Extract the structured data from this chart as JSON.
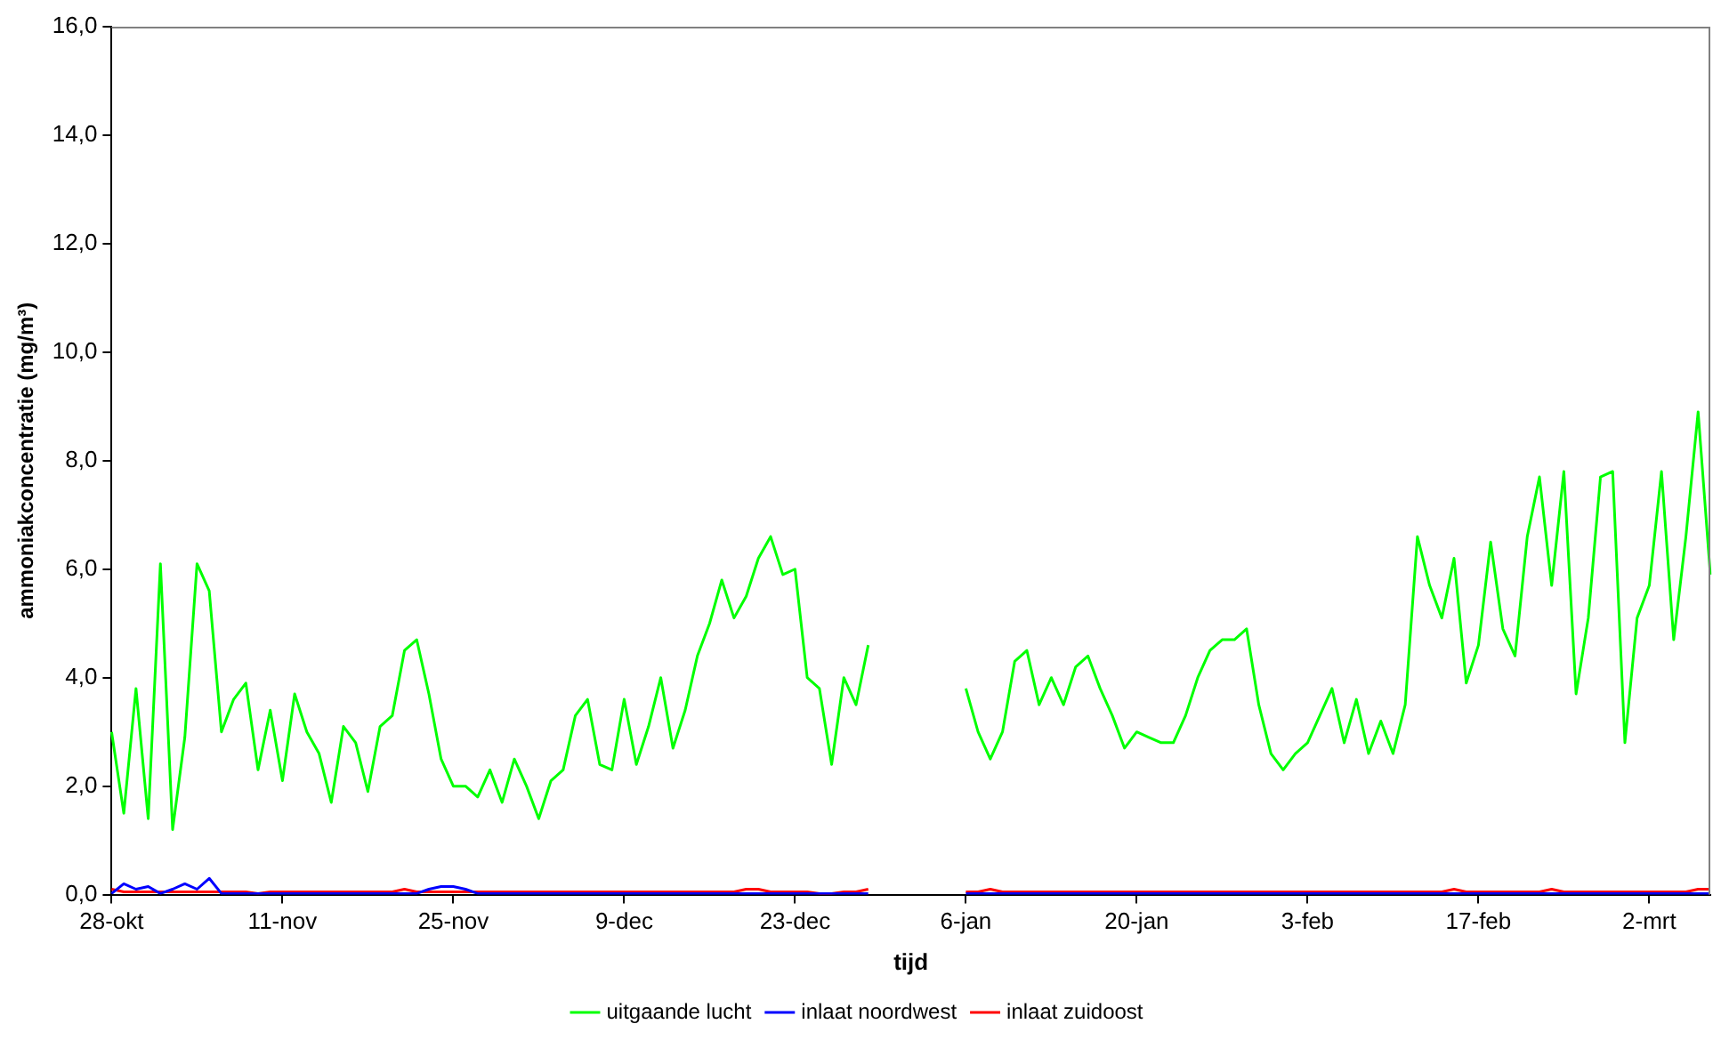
{
  "chart_data": {
    "type": "line",
    "xlabel": "tijd",
    "ylabel": "ammoniakconcentratie (mg/m³)",
    "categories": [
      "28-okt",
      null,
      null,
      null,
      null,
      null,
      null,
      null,
      null,
      null,
      null,
      null,
      null,
      null,
      "11-nov",
      null,
      null,
      null,
      null,
      null,
      null,
      null,
      null,
      null,
      null,
      null,
      null,
      null,
      "25-nov",
      null,
      null,
      null,
      null,
      null,
      null,
      null,
      null,
      null,
      null,
      null,
      null,
      null,
      "9-dec",
      null,
      null,
      null,
      null,
      null,
      null,
      null,
      null,
      null,
      null,
      null,
      null,
      null,
      "23-dec",
      null,
      null,
      null,
      null,
      null,
      null,
      null,
      null,
      null,
      null,
      null,
      null,
      null,
      "6-jan",
      null,
      null,
      null,
      null,
      null,
      null,
      null,
      null,
      null,
      null,
      null,
      null,
      null,
      "20-jan",
      null,
      null,
      null,
      null,
      null,
      null,
      null,
      null,
      null,
      null,
      null,
      null,
      null,
      "3-feb",
      null,
      null,
      null,
      null,
      null,
      null,
      null,
      null,
      null,
      null,
      null,
      null,
      null,
      "17-feb",
      null,
      null,
      null,
      null,
      null,
      null,
      null,
      null,
      null,
      null,
      null,
      null,
      null,
      "2-mrt",
      null,
      null,
      null,
      null,
      null
    ],
    "series": [
      {
        "name": "uitgaande lucht",
        "color": "#00ff00",
        "values": [
          3.0,
          1.5,
          3.8,
          1.4,
          6.1,
          1.2,
          2.9,
          6.1,
          5.6,
          3.0,
          3.6,
          3.9,
          2.3,
          3.4,
          2.1,
          3.7,
          3.0,
          2.6,
          1.7,
          3.1,
          2.8,
          1.9,
          3.1,
          3.3,
          4.5,
          4.7,
          3.7,
          2.5,
          2.0,
          2.0,
          1.8,
          2.3,
          1.7,
          2.5,
          2.0,
          1.4,
          2.1,
          2.3,
          3.3,
          3.6,
          2.4,
          2.3,
          3.6,
          2.4,
          3.1,
          4.0,
          2.7,
          3.4,
          4.4,
          5.0,
          5.8,
          5.1,
          5.5,
          6.2,
          6.6,
          5.9,
          6.0,
          4.0,
          3.8,
          2.4,
          4.0,
          3.5,
          4.6,
          null,
          null,
          null,
          null,
          null,
          null,
          null,
          3.8,
          3.0,
          2.5,
          3.0,
          4.3,
          4.5,
          3.5,
          4.0,
          3.5,
          4.2,
          4.4,
          3.8,
          3.3,
          2.7,
          3.0,
          2.9,
          2.8,
          2.8,
          3.3,
          4.0,
          4.5,
          4.7,
          4.7,
          4.9,
          3.5,
          2.6,
          2.3,
          2.6,
          2.8,
          3.3,
          3.8,
          2.8,
          3.6,
          2.6,
          3.2,
          2.6,
          3.5,
          6.6,
          5.7,
          5.1,
          6.2,
          3.9,
          4.6,
          6.5,
          4.9,
          4.4,
          6.6,
          7.7,
          5.7,
          7.8,
          3.7,
          5.1,
          7.7,
          7.8,
          2.8,
          5.1,
          5.7,
          7.8,
          4.7,
          6.6,
          8.9,
          5.9
        ]
      },
      {
        "name": "inlaat noordwest",
        "color": "#0000ff",
        "values": [
          0.02,
          0.2,
          0.1,
          0.15,
          0.02,
          0.1,
          0.2,
          0.1,
          0.3,
          0.02,
          0.02,
          0.02,
          0.02,
          0.02,
          0.02,
          0.02,
          0.02,
          0.02,
          0.02,
          0.02,
          0.02,
          0.02,
          0.02,
          0.02,
          0.02,
          0.02,
          0.1,
          0.15,
          0.15,
          0.1,
          0.02,
          0.02,
          0.02,
          0.02,
          0.02,
          0.02,
          0.02,
          0.02,
          0.02,
          0.02,
          0.02,
          0.02,
          0.02,
          0.02,
          0.02,
          0.02,
          0.02,
          0.02,
          0.02,
          0.02,
          0.02,
          0.02,
          0.02,
          0.02,
          0.02,
          0.02,
          0.02,
          0.02,
          0.02,
          0.02,
          0.02,
          0.02,
          0.02,
          null,
          null,
          null,
          null,
          null,
          null,
          null,
          0.02,
          0.02,
          0.02,
          0.02,
          0.02,
          0.02,
          0.02,
          0.02,
          0.02,
          0.02,
          0.02,
          0.02,
          0.02,
          0.02,
          0.02,
          0.02,
          0.02,
          0.02,
          0.02,
          0.02,
          0.02,
          0.02,
          0.02,
          0.02,
          0.02,
          0.02,
          0.02,
          0.02,
          0.02,
          0.02,
          0.02,
          0.02,
          0.02,
          0.02,
          0.02,
          0.02,
          0.02,
          0.02,
          0.02,
          0.02,
          0.02,
          0.02,
          0.02,
          0.02,
          0.02,
          0.02,
          0.02,
          0.02,
          0.02,
          0.02,
          0.02,
          0.02,
          0.02,
          0.02,
          0.02,
          0.02,
          0.02,
          0.02,
          0.02,
          0.02,
          0.02,
          0.02
        ]
      },
      {
        "name": "inlaat zuidoost",
        "color": "#ff0000",
        "values": [
          0.1,
          0.05,
          0.05,
          0.05,
          0.05,
          0.05,
          0.05,
          0.05,
          0.05,
          0.05,
          0.05,
          0.05,
          0.02,
          0.05,
          0.05,
          0.05,
          0.05,
          0.05,
          0.05,
          0.05,
          0.05,
          0.05,
          0.05,
          0.05,
          0.1,
          0.05,
          0.05,
          0.05,
          0.05,
          0.05,
          0.05,
          0.05,
          0.05,
          0.05,
          0.05,
          0.05,
          0.05,
          0.05,
          0.05,
          0.05,
          0.05,
          0.05,
          0.05,
          0.05,
          0.05,
          0.05,
          0.05,
          0.05,
          0.05,
          0.05,
          0.05,
          0.05,
          0.1,
          0.1,
          0.05,
          0.05,
          0.05,
          0.05,
          0.02,
          0.02,
          0.05,
          0.05,
          0.1,
          null,
          null,
          null,
          null,
          null,
          null,
          null,
          0.05,
          0.05,
          0.1,
          0.05,
          0.05,
          0.05,
          0.05,
          0.05,
          0.05,
          0.05,
          0.05,
          0.05,
          0.05,
          0.05,
          0.05,
          0.05,
          0.05,
          0.05,
          0.05,
          0.05,
          0.05,
          0.05,
          0.05,
          0.05,
          0.05,
          0.05,
          0.05,
          0.05,
          0.05,
          0.05,
          0.05,
          0.05,
          0.05,
          0.05,
          0.05,
          0.05,
          0.05,
          0.05,
          0.05,
          0.05,
          0.1,
          0.05,
          0.05,
          0.05,
          0.05,
          0.05,
          0.05,
          0.05,
          0.1,
          0.05,
          0.05,
          0.05,
          0.05,
          0.05,
          0.05,
          0.05,
          0.05,
          0.05,
          0.05,
          0.05,
          0.1,
          0.1
        ]
      }
    ],
    "ylim": [
      0,
      16
    ],
    "yticks": [
      {
        "value": 0,
        "label": "0,0"
      },
      {
        "value": 2,
        "label": "2,0"
      },
      {
        "value": 4,
        "label": "4,0"
      },
      {
        "value": 6,
        "label": "6,0"
      },
      {
        "value": 8,
        "label": "8,0"
      },
      {
        "value": 10,
        "label": "10,0"
      },
      {
        "value": 12,
        "label": "12,0"
      },
      {
        "value": 14,
        "label": "14,0"
      },
      {
        "value": 16,
        "label": "16,0"
      }
    ],
    "grid": false,
    "legend": "bottom",
    "marker": "none",
    "line_style": "solid"
  }
}
